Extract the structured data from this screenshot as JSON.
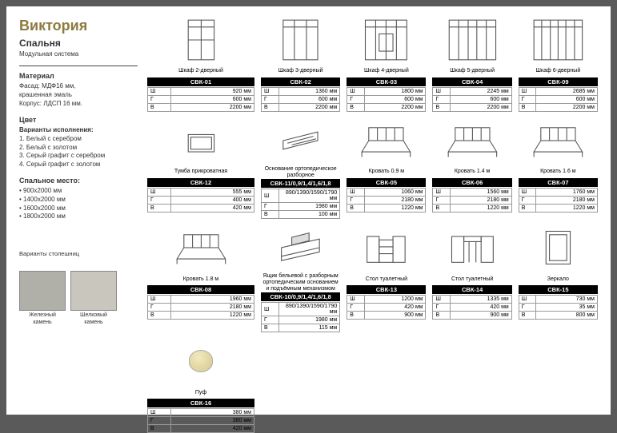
{
  "title": "Виктория",
  "subtitle": "Спальня",
  "subtitle2": "Модульная система",
  "material_title": "Материал",
  "material_body": "Фасад: МДФ16 мм,\nкрашенная эмаль\nКорпус: ЛДСП 16 мм.",
  "color_title": "Цвет",
  "color_subtitle": "Варианты исполнения:",
  "color_options": [
    "1. Белый с серебром",
    "2. Белый с золотом",
    "3. Серый графит с серебром",
    "4. Серый графит с золотом"
  ],
  "bed_title": "Спальное место:",
  "bed_sizes": [
    "900x2000 мм",
    "1400x2000 мм",
    "1600x2000 мм",
    "1800x2000 мм"
  ],
  "swatch_title": "Варианты столешниц",
  "swatches": [
    {
      "label": "Железный\nкамень"
    },
    {
      "label": "Шелковый\nкамень"
    }
  ],
  "spec_keys": [
    "Ш",
    "Г",
    "В"
  ],
  "items": [
    {
      "label": "Шкаф 2-дверный",
      "code": "СВК-01",
      "w": "920 мм",
      "d": "600 мм",
      "h": "2200 мм",
      "kind": "wardrobe2"
    },
    {
      "label": "Шкаф 3-дверный",
      "code": "СВК-02",
      "w": "1360 мм",
      "d": "600 мм",
      "h": "2200 мм",
      "kind": "wardrobe3"
    },
    {
      "label": "Шкаф 4-дверный",
      "code": "СВК-03",
      "w": "1800 мм",
      "d": "600 мм",
      "h": "2200 мм",
      "kind": "wardrobe4"
    },
    {
      "label": "Шкаф 5-дверный",
      "code": "СВК-04",
      "w": "2245 мм",
      "d": "600 мм",
      "h": "2200 мм",
      "kind": "wardrobe5"
    },
    {
      "label": "Шкаф 6-дверный",
      "code": "СВК-09",
      "w": "2685 мм",
      "d": "600 мм",
      "h": "2200 мм",
      "kind": "wardrobe6"
    },
    {
      "label": "Тумба прикроватная",
      "code": "СВК-12",
      "w": "555 мм",
      "d": "400 мм",
      "h": "420 мм",
      "kind": "nightstand",
      "offset": true
    },
    {
      "label": "Основание ортопедическое разборное",
      "code": "СВК-11/0,9/1,4/1,6/1,8",
      "w": "890/1390/1590/1790 мм",
      "d": "1980 мм",
      "h": "100 мм",
      "kind": "base"
    },
    {
      "label": "Кровать 0.9 м",
      "code": "СВК-05",
      "w": "1060 мм",
      "d": "2180 мм",
      "h": "1220 мм",
      "kind": "bed"
    },
    {
      "label": "Кровать 1.4 м",
      "code": "СВК-06",
      "w": "1560 мм",
      "d": "2180 мм",
      "h": "1220 мм",
      "kind": "bed"
    },
    {
      "label": "Кровать 1.6 м",
      "code": "СВК-07",
      "w": "1760 мм",
      "d": "2180 мм",
      "h": "1220 мм",
      "kind": "bed"
    },
    {
      "label": "Кровать 1.8 м",
      "code": "СВК-08",
      "w": "1960 мм",
      "d": "2180 мм",
      "h": "1220 мм",
      "kind": "bed"
    },
    {
      "label": "Ящик бельевой с разборным ортопедическим основанием и подъёмным механизмом",
      "code": "СВК-10/0,9/1,4/1,6/1,8",
      "w": "890/1390/1590/1790 мм",
      "d": "1980 мм",
      "h": "115 мм",
      "kind": "drawer"
    },
    {
      "label": "Стол туалетный",
      "code": "СВК-13",
      "w": "1200 мм",
      "d": "420 мм",
      "h": "900 мм",
      "kind": "table1"
    },
    {
      "label": "Стол туалетный",
      "code": "СВК-14",
      "w": "1335 мм",
      "d": "420 мм",
      "h": "900 мм",
      "kind": "table2"
    },
    {
      "label": "Зеркало",
      "code": "СВК-15",
      "w": "730 мм",
      "d": "35 мм",
      "h": "800 мм",
      "kind": "mirror"
    },
    {
      "label": "Пуф",
      "code": "СВК-16",
      "w": "380 мм",
      "d": "380 мм",
      "h": "420 мм",
      "kind": "pouf"
    }
  ]
}
